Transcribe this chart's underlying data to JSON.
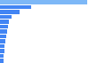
{
  "values": [
    1079000,
    380000,
    240000,
    140000,
    115000,
    100000,
    88000,
    78000,
    68000,
    60000,
    53000,
    47000,
    42000
  ],
  "bar_color": "#4285f4",
  "top_bar_color": "#7db8f7",
  "background_color": "#ffffff",
  "grid_color": "#dddddd",
  "n_bars": 13,
  "figsize": [
    1.0,
    0.71
  ],
  "dpi": 100
}
